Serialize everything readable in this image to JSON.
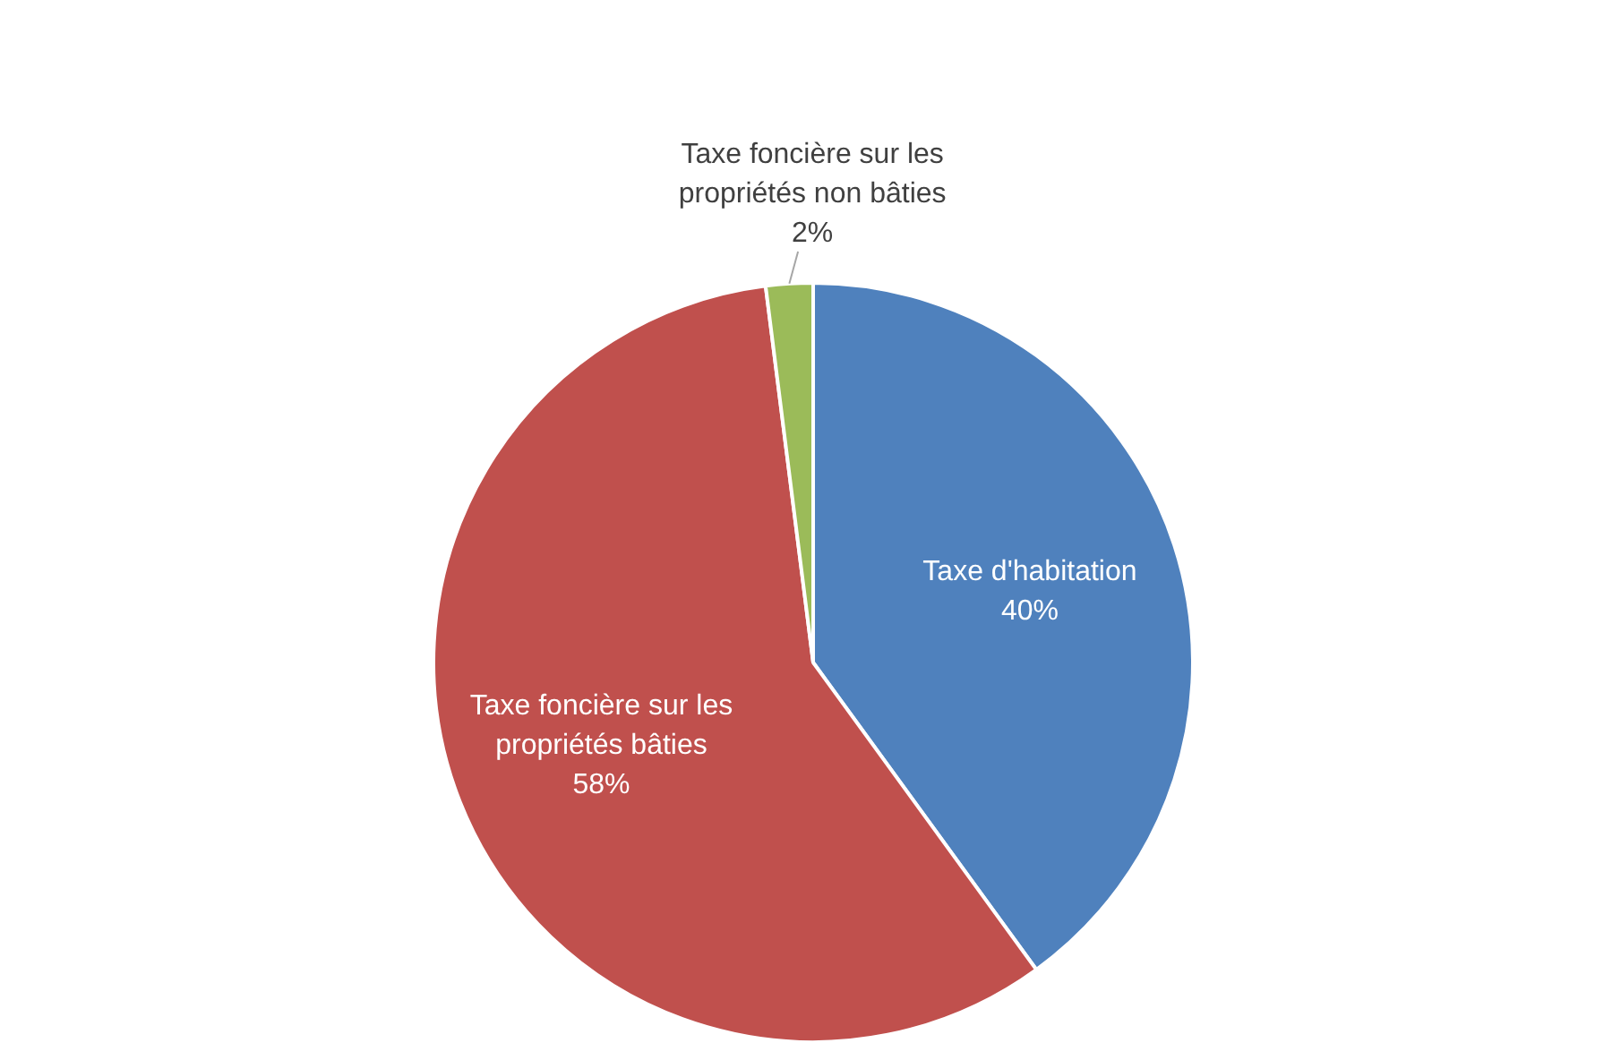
{
  "chart_data": {
    "type": "pie",
    "categories": [
      "Taxe d'habitation",
      "Taxe foncière sur les propriétés bâties",
      "Taxe foncière sur les propriétés non bâties"
    ],
    "values": [
      40,
      58,
      2
    ],
    "colors": [
      "#4f81bd",
      "#c0504d",
      "#9bbb59"
    ],
    "value_labels": [
      "40%",
      "58%",
      "2%"
    ],
    "legend": false
  }
}
